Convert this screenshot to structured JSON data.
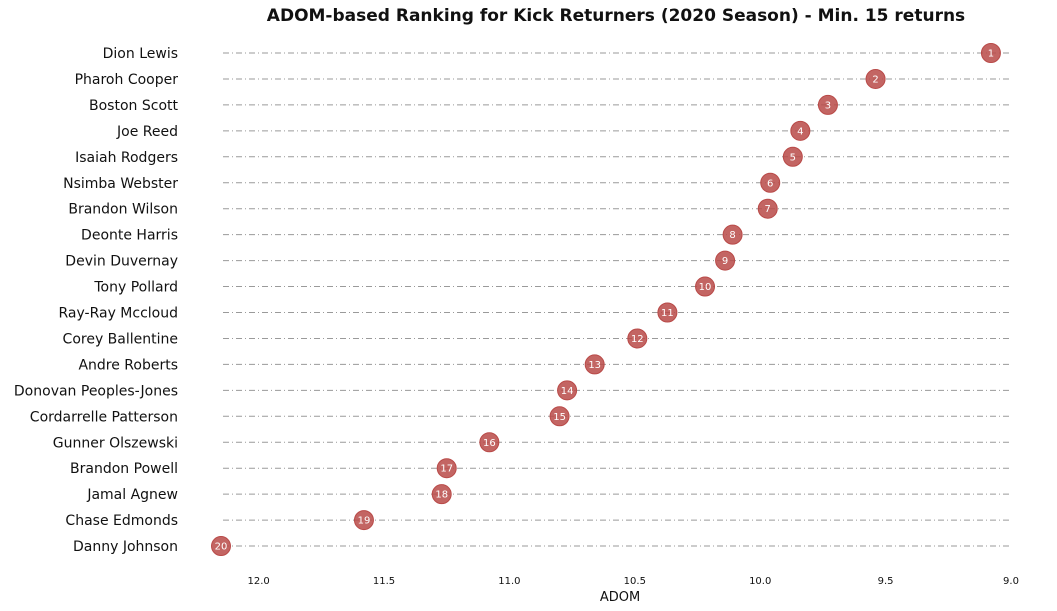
{
  "chart_data": {
    "type": "scatter",
    "title": "ADOM-based Ranking for Kick Returners (2020 Season) - Min. 15 returns",
    "xlabel": "ADOM",
    "ylabel": "",
    "xlim": [
      12.15,
      9.0
    ],
    "x_inverted": true,
    "x_ticks": [
      "12.0",
      "11.5",
      "11.0",
      "10.5",
      "10.0",
      "9.5",
      "9.0"
    ],
    "x_tick_values": [
      12.0,
      11.5,
      11.0,
      10.5,
      10.0,
      9.5,
      9.0
    ],
    "grid": "horizontal dash-dot lines per player",
    "marker_color": "#b94a48",
    "players": [
      {
        "name": "Dion Lewis",
        "rank": "1",
        "adom": 9.08
      },
      {
        "name": "Pharoh Cooper",
        "rank": "2",
        "adom": 9.54
      },
      {
        "name": "Boston Scott",
        "rank": "3",
        "adom": 9.73
      },
      {
        "name": "Joe Reed",
        "rank": "4",
        "adom": 9.84
      },
      {
        "name": "Isaiah Rodgers",
        "rank": "5",
        "adom": 9.87
      },
      {
        "name": "Nsimba Webster",
        "rank": "6",
        "adom": 9.96
      },
      {
        "name": "Brandon Wilson",
        "rank": "7",
        "adom": 9.97
      },
      {
        "name": "Deonte Harris",
        "rank": "8",
        "adom": 10.11
      },
      {
        "name": "Devin Duvernay",
        "rank": "9",
        "adom": 10.14
      },
      {
        "name": "Tony Pollard",
        "rank": "10",
        "adom": 10.22
      },
      {
        "name": "Ray-Ray Mccloud",
        "rank": "11",
        "adom": 10.37
      },
      {
        "name": "Corey Ballentine",
        "rank": "12",
        "adom": 10.49
      },
      {
        "name": "Andre Roberts",
        "rank": "13",
        "adom": 10.66
      },
      {
        "name": "Donovan Peoples-Jones",
        "rank": "14",
        "adom": 10.77
      },
      {
        "name": "Cordarrelle Patterson",
        "rank": "15",
        "adom": 10.8
      },
      {
        "name": "Gunner Olszewski",
        "rank": "16",
        "adom": 11.08
      },
      {
        "name": "Brandon Powell",
        "rank": "17",
        "adom": 11.25
      },
      {
        "name": "Jamal Agnew",
        "rank": "18",
        "adom": 11.27
      },
      {
        "name": "Chase Edmonds",
        "rank": "19",
        "adom": 11.58
      },
      {
        "name": "Danny Johnson",
        "rank": "20",
        "adom": 12.15
      }
    ]
  }
}
